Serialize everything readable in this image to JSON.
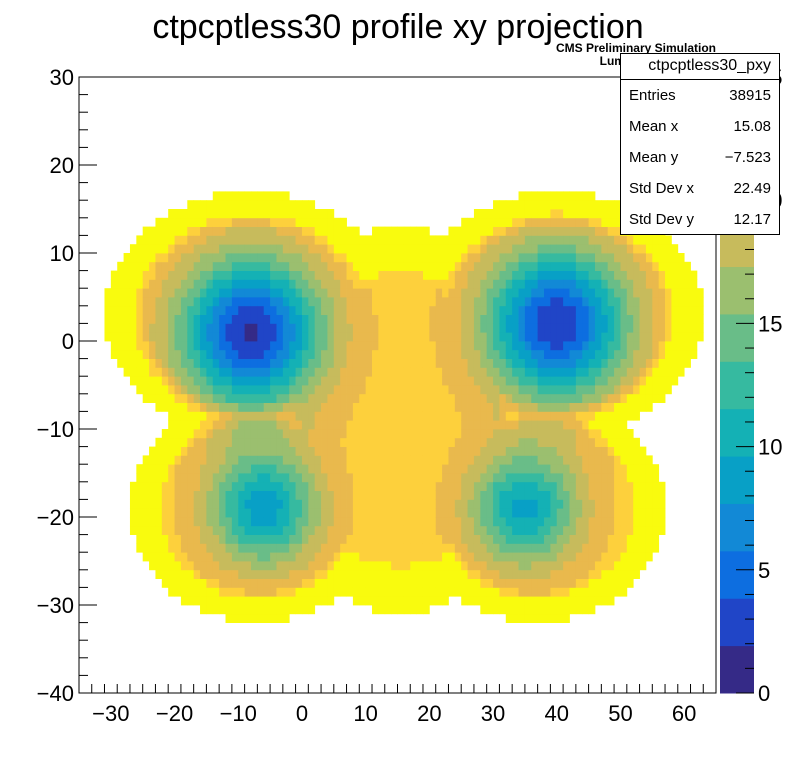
{
  "chart_data": {
    "type": "heatmap",
    "title": "ctpcptless30 profile xy projection",
    "annotations": [
      "CMS Preliminary Simulation",
      "Luminosity=1.0 pb-1"
    ],
    "xlim": [
      -35,
      65
    ],
    "ylim": [
      -40,
      30
    ],
    "zlim": [
      0,
      25
    ],
    "x_ticks": [
      "−30",
      "−20",
      "−10",
      "0",
      "10",
      "20",
      "30",
      "40",
      "50",
      "60"
    ],
    "x_tick_values": [
      -30,
      -20,
      -10,
      0,
      10,
      20,
      30,
      40,
      50,
      60
    ],
    "y_ticks": [
      "30",
      "20",
      "10",
      "0",
      "−10",
      "−20",
      "−30",
      "−40"
    ],
    "y_tick_values": [
      30,
      20,
      10,
      0,
      -10,
      -20,
      -30,
      -40
    ],
    "z_ticks": [
      "0",
      "5",
      "10",
      "15",
      "20",
      "25"
    ],
    "z_tick_values": [
      0,
      5,
      10,
      15,
      20,
      25
    ],
    "field": {
      "description_shape": "butterfly-shaped distribution, deep minima near (-8,1), (40,2), (-5,-19), (35,-19); maximum ~22 near (16,-9); zero outside boundary",
      "minima": [
        {
          "x": -8,
          "y": 1,
          "value": 1.5
        },
        {
          "x": 40,
          "y": 2,
          "value": 2.0
        },
        {
          "x": -6,
          "y": -19,
          "value": 8.0
        },
        {
          "x": 35,
          "y": -19,
          "value": 8.5
        }
      ],
      "center_max": {
        "x": 16,
        "y": -9,
        "value": 22
      }
    },
    "grid": false,
    "colormap": [
      "#352a87",
      "#2045c7",
      "#0d6ee0",
      "#1289d6",
      "#08a0c6",
      "#14b1b5",
      "#36baa0",
      "#69bd88",
      "#9bbf6f",
      "#c7bb5c",
      "#e9b94d",
      "#fdd03c",
      "#f9fb0e"
    ]
  },
  "stats": {
    "name": "ctpcptless30_pxy",
    "rows": [
      {
        "label": "Entries",
        "value": "38915"
      },
      {
        "label": "Mean x",
        "value": "15.08"
      },
      {
        "label": "Mean y",
        "value": "−7.523"
      },
      {
        "label": "Std Dev x",
        "value": "22.49"
      },
      {
        "label": "Std Dev y",
        "value": "12.17"
      }
    ]
  },
  "cms": {
    "line1": "CMS Preliminary Simulation",
    "line2": "Luminosity=1.0 pb-1"
  }
}
